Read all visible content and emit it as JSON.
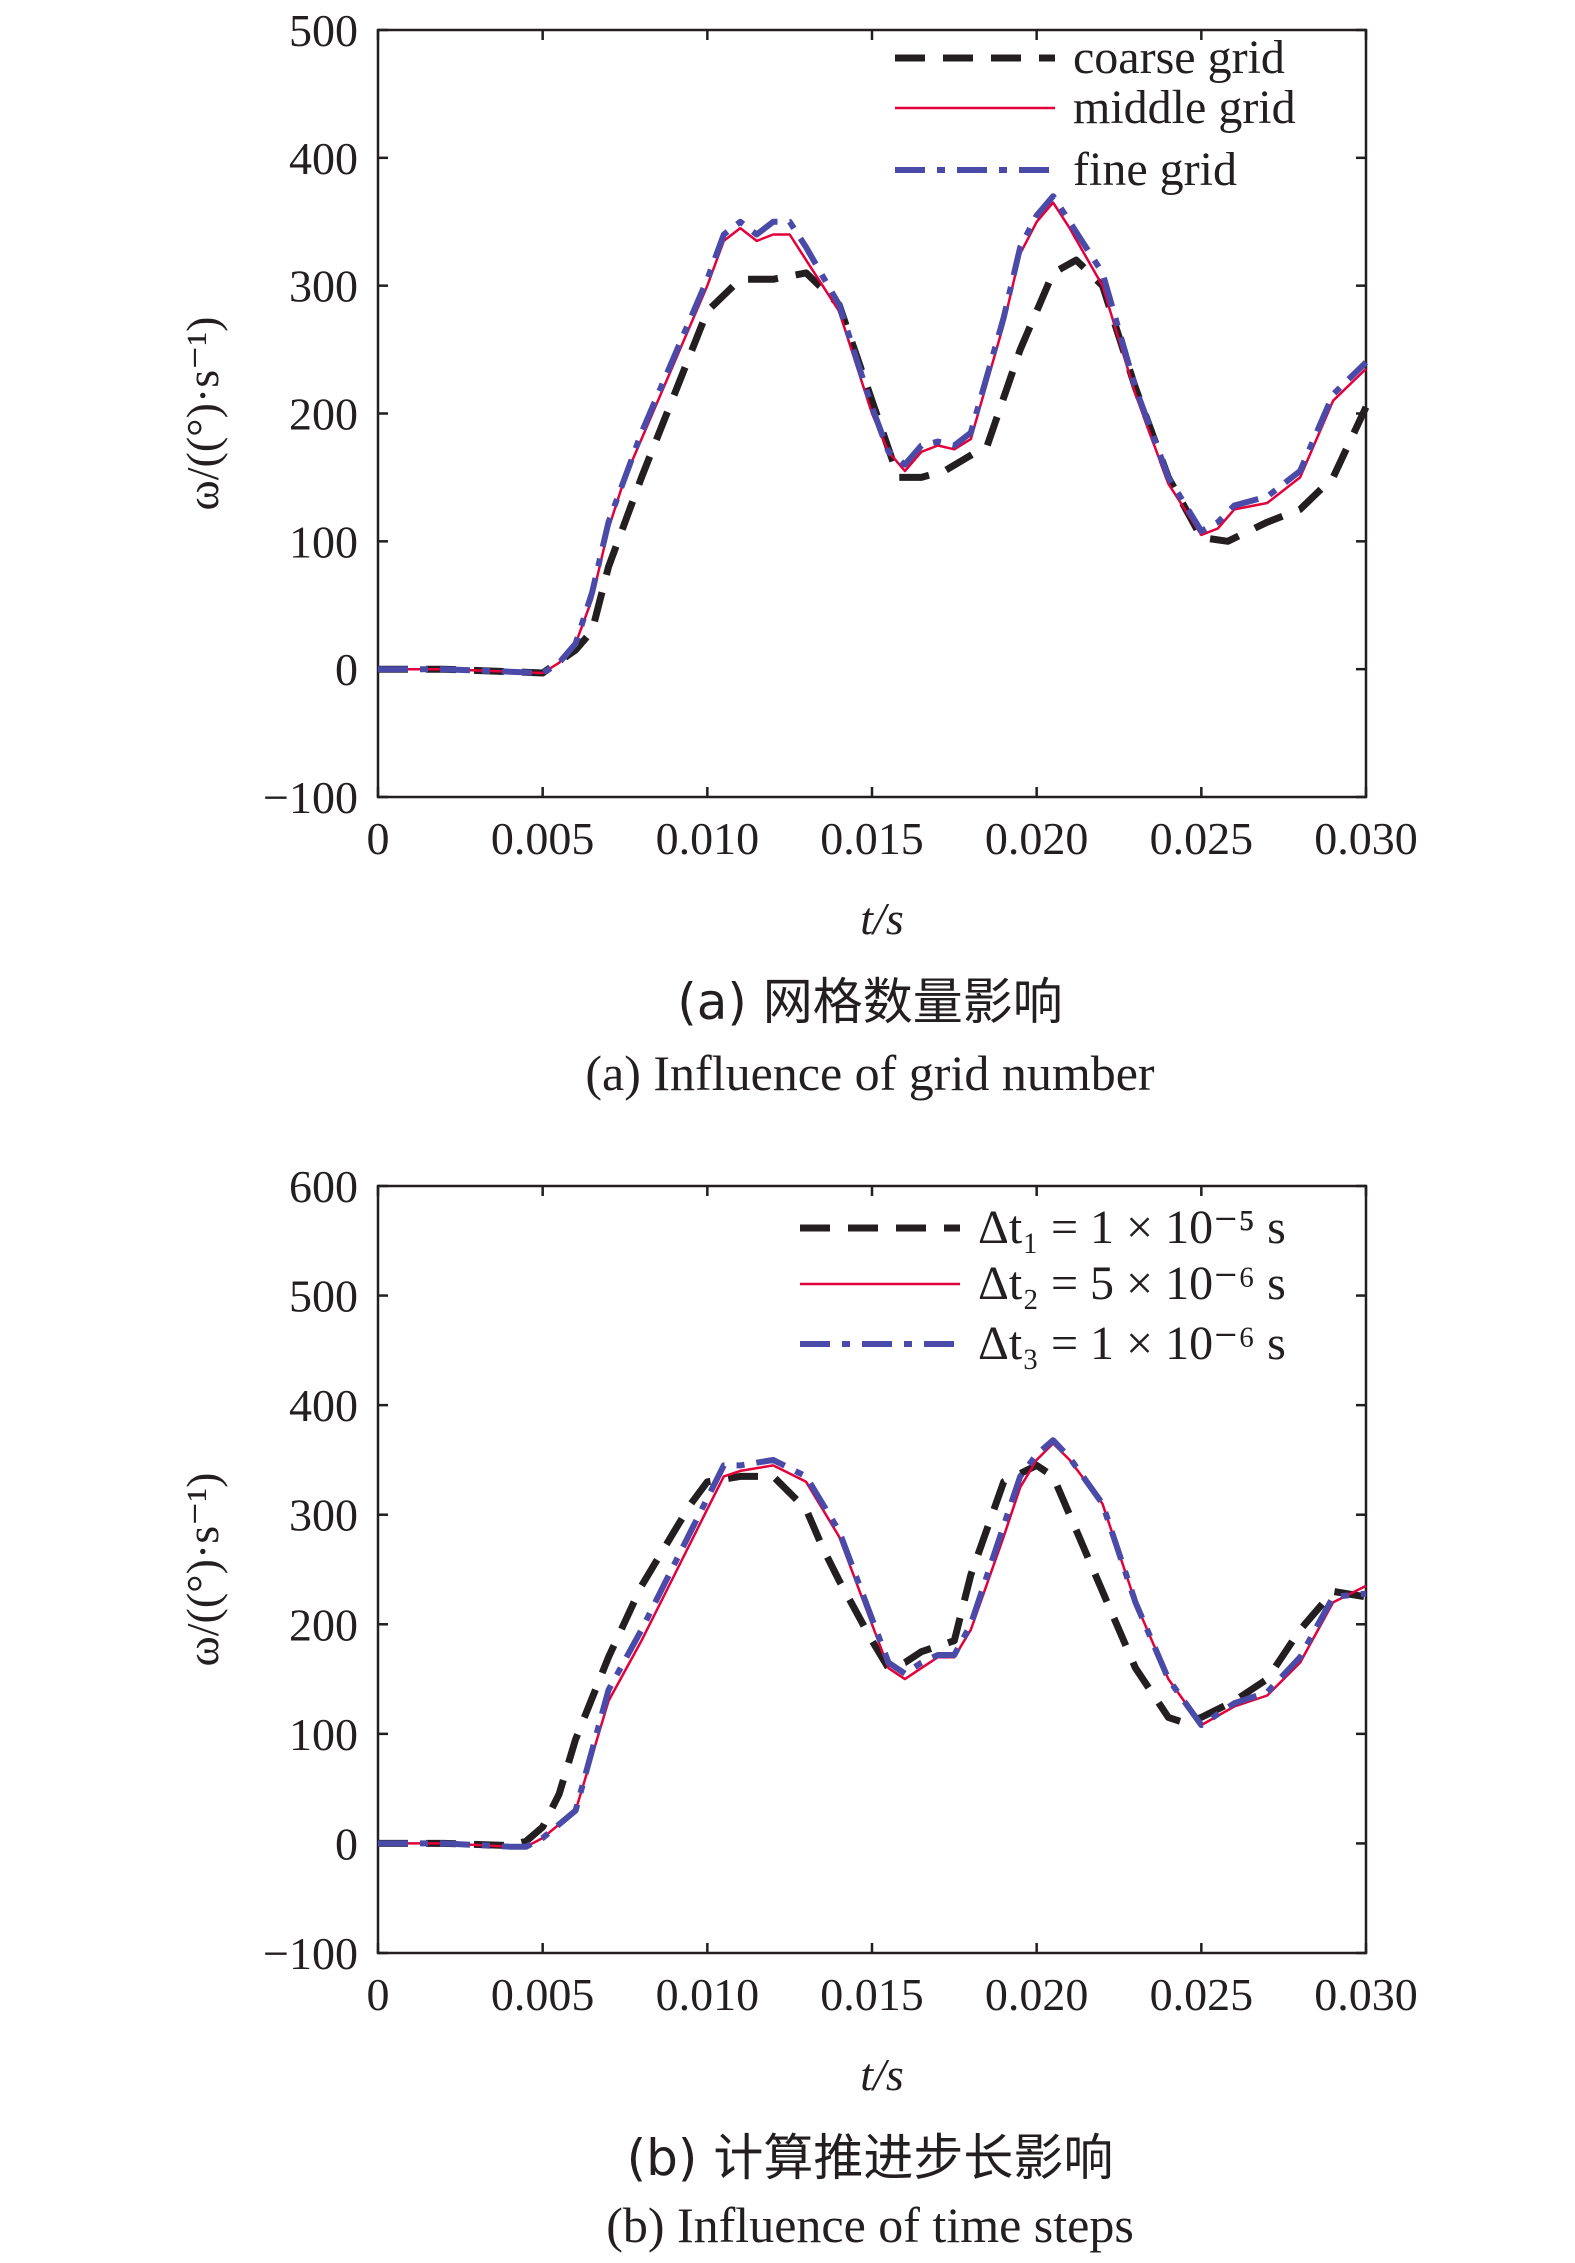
{
  "figure": {
    "panel_a": {
      "caption_cn": "(a) 网格数量影响",
      "caption_en": "(a) Influence of grid number"
    },
    "panel_b": {
      "caption_cn": "(b) 计算推进步长影响",
      "caption_en": "(b) Influence of time steps"
    }
  },
  "chart_data": [
    {
      "type": "line",
      "xlabel": "t/s",
      "ylabel": "ω/((°)·s⁻¹)",
      "xlim": [
        0,
        0.03
      ],
      "ylim": [
        -100,
        500
      ],
      "xticks": [
        "0",
        "0.005",
        "0.010",
        "0.015",
        "0.020",
        "0.025",
        "0.030"
      ],
      "yticks": [
        "−100",
        "0",
        "100",
        "200",
        "300",
        "400",
        "500"
      ],
      "legend_position": "top-right",
      "series": [
        {
          "name": "coarse grid",
          "color": "#231f20",
          "style": "dashed",
          "points": [
            [
              0,
              0
            ],
            [
              0.002,
              0
            ],
            [
              0.004,
              -2
            ],
            [
              0.005,
              -3
            ],
            [
              0.006,
              15
            ],
            [
              0.0065,
              30
            ],
            [
              0.007,
              80
            ],
            [
              0.008,
              150
            ],
            [
              0.009,
              215
            ],
            [
              0.01,
              280
            ],
            [
              0.011,
              305
            ],
            [
              0.012,
              305
            ],
            [
              0.013,
              310
            ],
            [
              0.014,
              285
            ],
            [
              0.015,
              210
            ],
            [
              0.0158,
              150
            ],
            [
              0.0165,
              150
            ],
            [
              0.0172,
              155
            ],
            [
              0.0185,
              175
            ],
            [
              0.0195,
              250
            ],
            [
              0.0205,
              310
            ],
            [
              0.0212,
              320
            ],
            [
              0.022,
              300
            ],
            [
              0.023,
              220
            ],
            [
              0.024,
              150
            ],
            [
              0.025,
              103
            ],
            [
              0.0258,
              100
            ],
            [
              0.027,
              115
            ],
            [
              0.028,
              125
            ],
            [
              0.029,
              150
            ],
            [
              0.03,
              205
            ]
          ]
        },
        {
          "name": "middle grid",
          "color": "#e4003a",
          "style": "solid",
          "points": [
            [
              0,
              0
            ],
            [
              0.002,
              0
            ],
            [
              0.004,
              -2
            ],
            [
              0.005,
              -3
            ],
            [
              0.0055,
              5
            ],
            [
              0.006,
              20
            ],
            [
              0.0065,
              55
            ],
            [
              0.007,
              110
            ],
            [
              0.0075,
              150
            ],
            [
              0.008,
              180
            ],
            [
              0.009,
              240
            ],
            [
              0.01,
              300
            ],
            [
              0.0105,
              335
            ],
            [
              0.011,
              345
            ],
            [
              0.0115,
              335
            ],
            [
              0.012,
              340
            ],
            [
              0.0125,
              340
            ],
            [
              0.013,
              320
            ],
            [
              0.014,
              280
            ],
            [
              0.015,
              200
            ],
            [
              0.0155,
              170
            ],
            [
              0.016,
              155
            ],
            [
              0.0165,
              170
            ],
            [
              0.017,
              175
            ],
            [
              0.0175,
              172
            ],
            [
              0.018,
              180
            ],
            [
              0.019,
              270
            ],
            [
              0.0195,
              325
            ],
            [
              0.02,
              350
            ],
            [
              0.0205,
              365
            ],
            [
              0.021,
              345
            ],
            [
              0.022,
              300
            ],
            [
              0.023,
              215
            ],
            [
              0.024,
              145
            ],
            [
              0.025,
              105
            ],
            [
              0.0255,
              110
            ],
            [
              0.026,
              125
            ],
            [
              0.027,
              130
            ],
            [
              0.028,
              150
            ],
            [
              0.029,
              210
            ],
            [
              0.03,
              235
            ]
          ]
        },
        {
          "name": "fine grid",
          "color": "#4a4aa8",
          "style": "dashdot",
          "points": [
            [
              0,
              0
            ],
            [
              0.002,
              0
            ],
            [
              0.004,
              -2
            ],
            [
              0.005,
              -3
            ],
            [
              0.0055,
              5
            ],
            [
              0.006,
              20
            ],
            [
              0.0065,
              60
            ],
            [
              0.007,
              115
            ],
            [
              0.0075,
              150
            ],
            [
              0.008,
              185
            ],
            [
              0.009,
              245
            ],
            [
              0.01,
              305
            ],
            [
              0.0105,
              340
            ],
            [
              0.011,
              350
            ],
            [
              0.0115,
              340
            ],
            [
              0.012,
              350
            ],
            [
              0.0125,
              350
            ],
            [
              0.013,
              330
            ],
            [
              0.014,
              285
            ],
            [
              0.015,
              205
            ],
            [
              0.0155,
              170
            ],
            [
              0.016,
              160
            ],
            [
              0.0165,
              175
            ],
            [
              0.017,
              178
            ],
            [
              0.0175,
              175
            ],
            [
              0.018,
              185
            ],
            [
              0.019,
              275
            ],
            [
              0.0195,
              330
            ],
            [
              0.02,
              355
            ],
            [
              0.0205,
              370
            ],
            [
              0.021,
              350
            ],
            [
              0.022,
              310
            ],
            [
              0.023,
              220
            ],
            [
              0.024,
              150
            ],
            [
              0.025,
              108
            ],
            [
              0.0255,
              115
            ],
            [
              0.026,
              128
            ],
            [
              0.027,
              135
            ],
            [
              0.028,
              155
            ],
            [
              0.029,
              215
            ],
            [
              0.03,
              240
            ]
          ]
        }
      ]
    },
    {
      "type": "line",
      "xlabel": "t/s",
      "ylabel": "ω/((°)·s⁻¹)",
      "xlim": [
        0,
        0.03
      ],
      "ylim": [
        -100,
        600
      ],
      "xticks": [
        "0",
        "0.005",
        "0.010",
        "0.015",
        "0.020",
        "0.025",
        "0.030"
      ],
      "yticks": [
        "−100",
        "0",
        "100",
        "200",
        "300",
        "400",
        "500",
        "600"
      ],
      "legend_position": "top-right",
      "series": [
        {
          "name": "Δt₁ = 1 × 10⁻⁵ s",
          "color": "#231f20",
          "style": "dashed",
          "points": [
            [
              0,
              0
            ],
            [
              0.002,
              0
            ],
            [
              0.004,
              -2
            ],
            [
              0.0045,
              2
            ],
            [
              0.005,
              15
            ],
            [
              0.0055,
              45
            ],
            [
              0.006,
              95
            ],
            [
              0.007,
              170
            ],
            [
              0.008,
              235
            ],
            [
              0.009,
              285
            ],
            [
              0.0095,
              310
            ],
            [
              0.01,
              330
            ],
            [
              0.011,
              335
            ],
            [
              0.012,
              335
            ],
            [
              0.013,
              305
            ],
            [
              0.0135,
              270
            ],
            [
              0.014,
              240
            ],
            [
              0.015,
              185
            ],
            [
              0.0155,
              160
            ],
            [
              0.016,
              165
            ],
            [
              0.0165,
              175
            ],
            [
              0.017,
              180
            ],
            [
              0.0175,
              185
            ],
            [
              0.018,
              245
            ],
            [
              0.019,
              330
            ],
            [
              0.02,
              345
            ],
            [
              0.0205,
              335
            ],
            [
              0.021,
              300
            ],
            [
              0.022,
              230
            ],
            [
              0.023,
              160
            ],
            [
              0.024,
              115
            ],
            [
              0.0245,
              110
            ],
            [
              0.025,
              115
            ],
            [
              0.026,
              130
            ],
            [
              0.027,
              150
            ],
            [
              0.028,
              195
            ],
            [
              0.029,
              230
            ],
            [
              0.03,
              225
            ]
          ]
        },
        {
          "name": "Δt₂ = 5 × 10⁻⁶ s",
          "color": "#e4003a",
          "style": "solid",
          "points": [
            [
              0,
              0
            ],
            [
              0.002,
              0
            ],
            [
              0.004,
              -3
            ],
            [
              0.0045,
              -3
            ],
            [
              0.005,
              5
            ],
            [
              0.006,
              30
            ],
            [
              0.0065,
              80
            ],
            [
              0.007,
              130
            ],
            [
              0.008,
              185
            ],
            [
              0.009,
              245
            ],
            [
              0.01,
              305
            ],
            [
              0.0105,
              335
            ],
            [
              0.011,
              340
            ],
            [
              0.012,
              345
            ],
            [
              0.013,
              330
            ],
            [
              0.014,
              280
            ],
            [
              0.015,
              200
            ],
            [
              0.0155,
              160
            ],
            [
              0.016,
              150
            ],
            [
              0.0165,
              160
            ],
            [
              0.017,
              170
            ],
            [
              0.0175,
              170
            ],
            [
              0.018,
              195
            ],
            [
              0.019,
              280
            ],
            [
              0.0195,
              325
            ],
            [
              0.02,
              350
            ],
            [
              0.0205,
              365
            ],
            [
              0.021,
              350
            ],
            [
              0.022,
              310
            ],
            [
              0.023,
              220
            ],
            [
              0.024,
              150
            ],
            [
              0.025,
              108
            ],
            [
              0.026,
              125
            ],
            [
              0.027,
              135
            ],
            [
              0.028,
              165
            ],
            [
              0.029,
              220
            ],
            [
              0.03,
              235
            ]
          ]
        },
        {
          "name": "Δt₃ = 1 × 10⁻⁶ s",
          "color": "#4a4aa8",
          "style": "dashdot",
          "points": [
            [
              0,
              0
            ],
            [
              0.002,
              0
            ],
            [
              0.004,
              -3
            ],
            [
              0.0045,
              -3
            ],
            [
              0.005,
              5
            ],
            [
              0.006,
              30
            ],
            [
              0.0065,
              85
            ],
            [
              0.007,
              140
            ],
            [
              0.008,
              195
            ],
            [
              0.009,
              255
            ],
            [
              0.01,
              315
            ],
            [
              0.0105,
              345
            ],
            [
              0.011,
              345
            ],
            [
              0.012,
              350
            ],
            [
              0.013,
              335
            ],
            [
              0.014,
              285
            ],
            [
              0.015,
              205
            ],
            [
              0.0155,
              165
            ],
            [
              0.016,
              155
            ],
            [
              0.0165,
              165
            ],
            [
              0.017,
              172
            ],
            [
              0.0175,
              172
            ],
            [
              0.018,
              200
            ],
            [
              0.019,
              290
            ],
            [
              0.0195,
              335
            ],
            [
              0.02,
              355
            ],
            [
              0.0205,
              368
            ],
            [
              0.021,
              352
            ],
            [
              0.022,
              310
            ],
            [
              0.023,
              220
            ],
            [
              0.024,
              150
            ],
            [
              0.025,
              108
            ],
            [
              0.026,
              128
            ],
            [
              0.027,
              138
            ],
            [
              0.028,
              170
            ],
            [
              0.029,
              225
            ],
            [
              0.03,
              228
            ]
          ]
        }
      ]
    }
  ]
}
